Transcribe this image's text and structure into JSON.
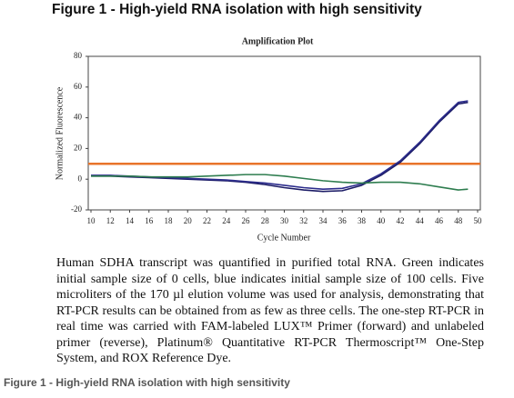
{
  "header": {
    "title": "Figure 1 - High-yield RNA isolation with high sensitivity"
  },
  "chart_data": {
    "type": "line",
    "title": "Amplification Plot",
    "xlabel": "Cycle Number",
    "ylabel": "Normalized Fluorescence",
    "x": [
      10,
      12,
      14,
      16,
      18,
      20,
      22,
      24,
      26,
      28,
      30,
      32,
      34,
      36,
      38,
      40,
      42,
      44,
      46,
      48,
      49
    ],
    "series": [
      {
        "color": "#1c1c66",
        "values": [
          2,
          2,
          1.5,
          1,
          0.5,
          0,
          -0.5,
          -1,
          -2,
          -3.5,
          -5.5,
          -7,
          -8,
          -7.5,
          -4,
          2.5,
          11,
          23,
          37,
          49,
          50
        ]
      },
      {
        "color": "#2c2c8c",
        "values": [
          2.5,
          2.5,
          2,
          1.5,
          1,
          0.5,
          0,
          -0.5,
          -1.5,
          -2.5,
          -4,
          -5.5,
          -6.5,
          -6,
          -3,
          3.5,
          12,
          24,
          38,
          50,
          51
        ]
      },
      {
        "color": "#2e7d4f",
        "values": [
          2,
          2,
          2,
          1.5,
          1.5,
          1.5,
          2,
          2.5,
          3,
          3,
          2,
          0.5,
          -1,
          -2,
          -2.5,
          -2,
          -2,
          -3,
          -5,
          -7,
          -6.5
        ]
      }
    ],
    "threshold": 10,
    "threshold_color": "#e8742a",
    "xlim": [
      10,
      50
    ],
    "xticks": [
      10,
      12,
      14,
      16,
      18,
      20,
      22,
      24,
      26,
      28,
      30,
      32,
      34,
      36,
      38,
      40,
      42,
      44,
      46,
      48,
      50
    ],
    "ylim": [
      -20,
      80
    ],
    "yticks": [
      -20,
      0,
      20,
      40,
      60,
      80
    ]
  },
  "caption": "Human SDHA transcript was quantified in purified total RNA. Green indicates initial sample size of 0 cells, blue indicates initial sample size of 100 cells. Five microliters of the 170 µl elution volume was used for analysis, demonstrating that RT-PCR results can be obtained from as few as three cells. The one-step RT-PCR in real time was carried with FAM-labeled LUX™ Primer (forward) and unlabeled primer (reverse), Platinum® Quantitative RT-PCR Thermoscript™ One-Step System, and ROX Reference Dye.",
  "footer": "Figure 1 - High-yield RNA isolation with high sensitivity"
}
